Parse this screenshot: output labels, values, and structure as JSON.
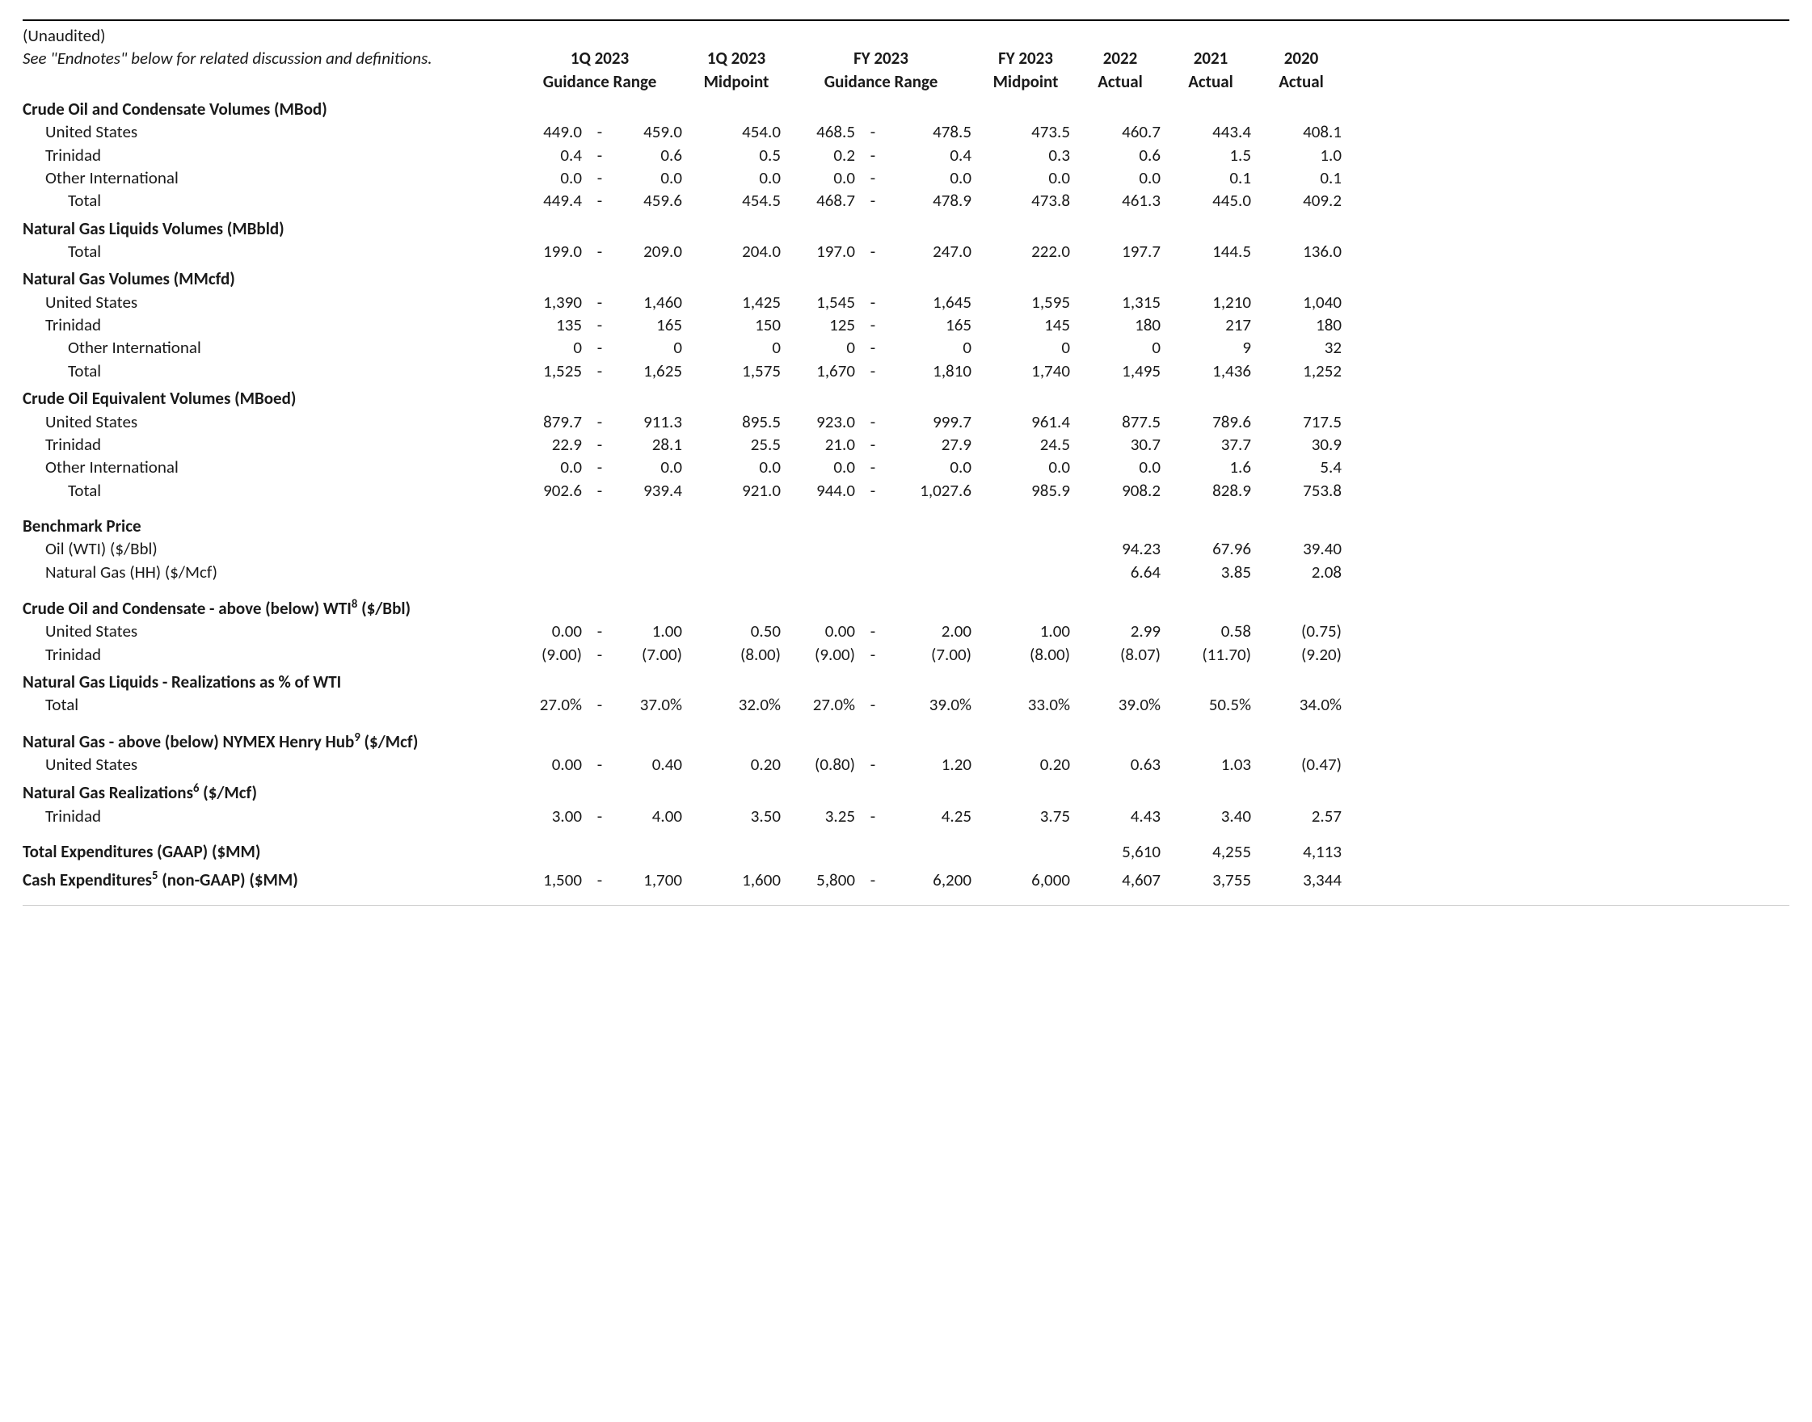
{
  "meta": {
    "unaudited": "(Unaudited)",
    "endnote_ref": "See \"Endnotes\" below for related discussion and definitions."
  },
  "columns": {
    "q1_range_title_l1": "1Q 2023",
    "q1_range_title_l2": "Guidance Range",
    "q1_mid_title_l1": "1Q 2023",
    "q1_mid_title_l2": "Midpoint",
    "fy_range_title_l1": "FY 2023",
    "fy_range_title_l2": "Guidance Range",
    "fy_mid_title_l1": "FY 2023",
    "fy_mid_title_l2": "Midpoint",
    "a2022_l1": "2022",
    "a2022_l2": "Actual",
    "a2021_l1": "2021",
    "a2021_l2": "Actual",
    "a2020_l1": "2020",
    "a2020_l2": "Actual"
  },
  "sections": [
    {
      "title": "Crude Oil and Condensate Volumes (MBod)",
      "rows": [
        {
          "label": "United States",
          "indent": 1,
          "q1_lo": "449.0",
          "q1_hi": "459.0",
          "q1_mid": "454.0",
          "fy_lo": "468.5",
          "fy_hi": "478.5",
          "fy_mid": "473.5",
          "a22": "460.7",
          "a21": "443.4",
          "a20": "408.1"
        },
        {
          "label": "Trinidad",
          "indent": 1,
          "q1_lo": "0.4",
          "q1_hi": "0.6",
          "q1_mid": "0.5",
          "fy_lo": "0.2",
          "fy_hi": "0.4",
          "fy_mid": "0.3",
          "a22": "0.6",
          "a21": "1.5",
          "a20": "1.0"
        },
        {
          "label": "Other International",
          "indent": 1,
          "q1_lo": "0.0",
          "q1_hi": "0.0",
          "q1_mid": "0.0",
          "fy_lo": "0.0",
          "fy_hi": "0.0",
          "fy_mid": "0.0",
          "a22": "0.0",
          "a21": "0.1",
          "a20": "0.1"
        },
        {
          "label": "Total",
          "indent": 2,
          "q1_lo": "449.4",
          "q1_hi": "459.6",
          "q1_mid": "454.5",
          "fy_lo": "468.7",
          "fy_hi": "478.9",
          "fy_mid": "473.8",
          "a22": "461.3",
          "a21": "445.0",
          "a20": "409.2"
        }
      ]
    },
    {
      "title": "Natural Gas Liquids Volumes (MBbld)",
      "rows": [
        {
          "label": "Total",
          "indent": 2,
          "q1_lo": "199.0",
          "q1_hi": "209.0",
          "q1_mid": "204.0",
          "fy_lo": "197.0",
          "fy_hi": "247.0",
          "fy_mid": "222.0",
          "a22": "197.7",
          "a21": "144.5",
          "a20": "136.0"
        }
      ]
    },
    {
      "title": "Natural Gas Volumes (MMcfd)",
      "rows": [
        {
          "label": "United States",
          "indent": 1,
          "q1_lo": "1,390",
          "q1_hi": "1,460",
          "q1_mid": "1,425",
          "fy_lo": "1,545",
          "fy_hi": "1,645",
          "fy_mid": "1,595",
          "a22": "1,315",
          "a21": "1,210",
          "a20": "1,040"
        },
        {
          "label": "Trinidad",
          "indent": 1,
          "q1_lo": "135",
          "q1_hi": "165",
          "q1_mid": "150",
          "fy_lo": "125",
          "fy_hi": "165",
          "fy_mid": "145",
          "a22": "180",
          "a21": "217",
          "a20": "180"
        },
        {
          "label": "Other International",
          "indent": 2,
          "q1_lo": "0",
          "q1_hi": "0",
          "q1_mid": "0",
          "fy_lo": "0",
          "fy_hi": "0",
          "fy_mid": "0",
          "a22": "0",
          "a21": "9",
          "a20": "32"
        },
        {
          "label": "Total",
          "indent": 2,
          "q1_lo": "1,525",
          "q1_hi": "1,625",
          "q1_mid": "1,575",
          "fy_lo": "1,670",
          "fy_hi": "1,810",
          "fy_mid": "1,740",
          "a22": "1,495",
          "a21": "1,436",
          "a20": "1,252"
        }
      ]
    },
    {
      "title": "Crude Oil Equivalent Volumes (MBoed)",
      "rows": [
        {
          "label": "United States",
          "indent": 1,
          "q1_lo": "879.7",
          "q1_hi": "911.3",
          "q1_mid": "895.5",
          "fy_lo": "923.0",
          "fy_hi": "999.7",
          "fy_mid": "961.4",
          "a22": "877.5",
          "a21": "789.6",
          "a20": "717.5"
        },
        {
          "label": "Trinidad",
          "indent": 1,
          "q1_lo": "22.9",
          "q1_hi": "28.1",
          "q1_mid": "25.5",
          "fy_lo": "21.0",
          "fy_hi": "27.9",
          "fy_mid": "24.5",
          "a22": "30.7",
          "a21": "37.7",
          "a20": "30.9"
        },
        {
          "label": "Other International",
          "indent": 1,
          "q1_lo": "0.0",
          "q1_hi": "0.0",
          "q1_mid": "0.0",
          "fy_lo": "0.0",
          "fy_hi": "0.0",
          "fy_mid": "0.0",
          "a22": "0.0",
          "a21": "1.6",
          "a20": "5.4"
        },
        {
          "label": "Total",
          "indent": 2,
          "q1_lo": "902.6",
          "q1_hi": "939.4",
          "q1_mid": "921.0",
          "fy_lo": "944.0",
          "fy_hi": "1,027.6",
          "fy_mid": "985.9",
          "a22": "908.2",
          "a21": "828.9",
          "a20": "753.8"
        }
      ],
      "spacer_after": true
    },
    {
      "title": "Benchmark Price",
      "rows": [
        {
          "label": "Oil (WTI) ($/Bbl)",
          "indent": 1,
          "a22": "94.23",
          "a21": "67.96",
          "a20": "39.40"
        },
        {
          "label": "Natural Gas (HH) ($/Mcf)",
          "indent": 1,
          "a22": "6.64",
          "a21": "3.85",
          "a20": "2.08"
        }
      ],
      "spacer_after": true
    },
    {
      "title_html": "Crude Oil and Condensate - above (below) WTI<sup>8</sup> ($/Bbl)",
      "rows": [
        {
          "label": "United States",
          "indent": 1,
          "q1_lo": "0.00",
          "q1_hi": "1.00",
          "q1_mid": "0.50",
          "fy_lo": "0.00",
          "fy_hi": "2.00",
          "fy_mid": "1.00",
          "a22": "2.99",
          "a21": "0.58",
          "a20": "(0.75)"
        },
        {
          "label": "Trinidad",
          "indent": 1,
          "q1_lo": "(9.00)",
          "q1_hi": "(7.00)",
          "q1_mid": "(8.00)",
          "fy_lo": "(9.00)",
          "fy_hi": "(7.00)",
          "fy_mid": "(8.00)",
          "a22": "(8.07)",
          "a21": "(11.70)",
          "a20": "(9.20)"
        }
      ]
    },
    {
      "title": "Natural Gas Liquids - Realizations as % of WTI",
      "rows": [
        {
          "label": "Total",
          "indent": 1,
          "q1_lo": "27.0%",
          "q1_hi": "37.0%",
          "q1_mid": "32.0%",
          "fy_lo": "27.0%",
          "fy_hi": "39.0%",
          "fy_mid": "33.0%",
          "a22": "39.0%",
          "a21": "50.5%",
          "a20": "34.0%"
        }
      ],
      "spacer_after": true
    },
    {
      "title_html": "Natural Gas - above (below) NYMEX Henry Hub<sup>9</sup> ($/Mcf)",
      "rows": [
        {
          "label": "United States",
          "indent": 1,
          "q1_lo": "0.00",
          "q1_hi": "0.40",
          "q1_mid": "0.20",
          "fy_lo": "(0.80)",
          "fy_hi": "1.20",
          "fy_mid": "0.20",
          "a22": "0.63",
          "a21": "1.03",
          "a20": "(0.47)"
        }
      ]
    },
    {
      "title_html": "Natural Gas Realizations<sup>6</sup> ($/Mcf)",
      "rows": [
        {
          "label": "Trinidad",
          "indent": 1,
          "q1_lo": "3.00",
          "q1_hi": "4.00",
          "q1_mid": "3.50",
          "fy_lo": "3.25",
          "fy_hi": "4.25",
          "fy_mid": "3.75",
          "a22": "4.43",
          "a21": "3.40",
          "a20": "2.57"
        }
      ],
      "spacer_after": true
    }
  ],
  "standalone_rows": [
    {
      "title": "Total Expenditures (GAAP) ($MM)",
      "a22": "5,610",
      "a21": "4,255",
      "a20": "4,113"
    },
    {
      "title_html": "Cash Expenditures<sup>5</sup> (non-GAAP) ($MM)",
      "q1_lo": "1,500",
      "q1_hi": "1,700",
      "q1_mid": "1,600",
      "fy_lo": "5,800",
      "fy_hi": "6,200",
      "fy_mid": "6,000",
      "a22": "4,607",
      "a21": "3,755",
      "a20": "3,344"
    }
  ]
}
